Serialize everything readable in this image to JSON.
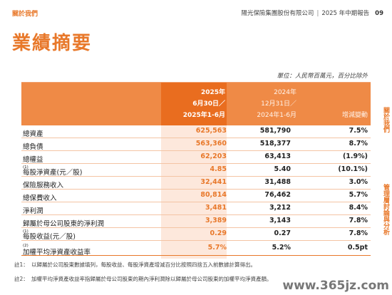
{
  "header": {
    "section": "關於我們",
    "company": "陽光保險集團股份有限公司",
    "report": "2025 年中期報告",
    "page": "09"
  },
  "title": "業績摘要",
  "unit_note": "單位：人民幣百萬元，百分比除外",
  "table": {
    "col1": [
      "2025年",
      "6月30日／",
      "2025年1-6月"
    ],
    "col2": [
      "2024年",
      "12月31日／",
      "2024年1-6月"
    ],
    "col3": "增減變動",
    "rows": [
      {
        "label": "總資產",
        "sup": "",
        "v1": "625,563",
        "v2": "581,790",
        "v3": "7.5%"
      },
      {
        "label": "總負債",
        "sup": "",
        "v1": "563,360",
        "v2": "518,377",
        "v3": "8.7%"
      },
      {
        "label": "總權益",
        "sup": "",
        "v1": "62,203",
        "v2": "63,413",
        "v3": "(1.9%)"
      },
      {
        "label": "每股淨資產(元／股)",
        "sup": "(1)",
        "v1": "4.85",
        "v2": "5.40",
        "v3": "(10.1%)"
      },
      {
        "label": "保險服務收入",
        "sup": "",
        "v1": "32,441",
        "v2": "31,488",
        "v3": "3.0%"
      },
      {
        "label": "總保費收入",
        "sup": "",
        "v1": "80,814",
        "v2": "76,462",
        "v3": "5.7%"
      },
      {
        "label": "淨利潤",
        "sup": "",
        "v1": "3,481",
        "v2": "3,212",
        "v3": "8.4%"
      },
      {
        "label": "歸屬於母公司股東的淨利潤",
        "sup": "",
        "v1": "3,389",
        "v2": "3,143",
        "v3": "7.8%"
      },
      {
        "label": "每股收益(元／股)",
        "sup": "(1)",
        "v1": "0.29",
        "v2": "0.27",
        "v3": "7.8%"
      },
      {
        "label": "加權平均淨資產收益率",
        "sup": "(2)",
        "v1": "5.7%",
        "v2": "5.2%",
        "v3": "0.5pt"
      }
    ]
  },
  "notes": [
    {
      "key": "註1：",
      "text": "以歸屬於公司股東數據填列，每股收益、每股淨資產增減百分比按照四捨五入前數據計算得出。"
    },
    {
      "key": "註2：",
      "text": "加權平均淨資產收益率指歸屬於母公司股東的期內淨利潤除以歸屬於母公司股東的加權平均淨資產額。"
    }
  ],
  "side_tabs": [
    "關於我們",
    "管理層討論與分析"
  ],
  "watermark": "www.365jz.com",
  "colors": {
    "accent": "#e8782a",
    "header_bg": "#ef8a46",
    "band_head": "#e96d1f",
    "band_body": "#fde8dc"
  }
}
